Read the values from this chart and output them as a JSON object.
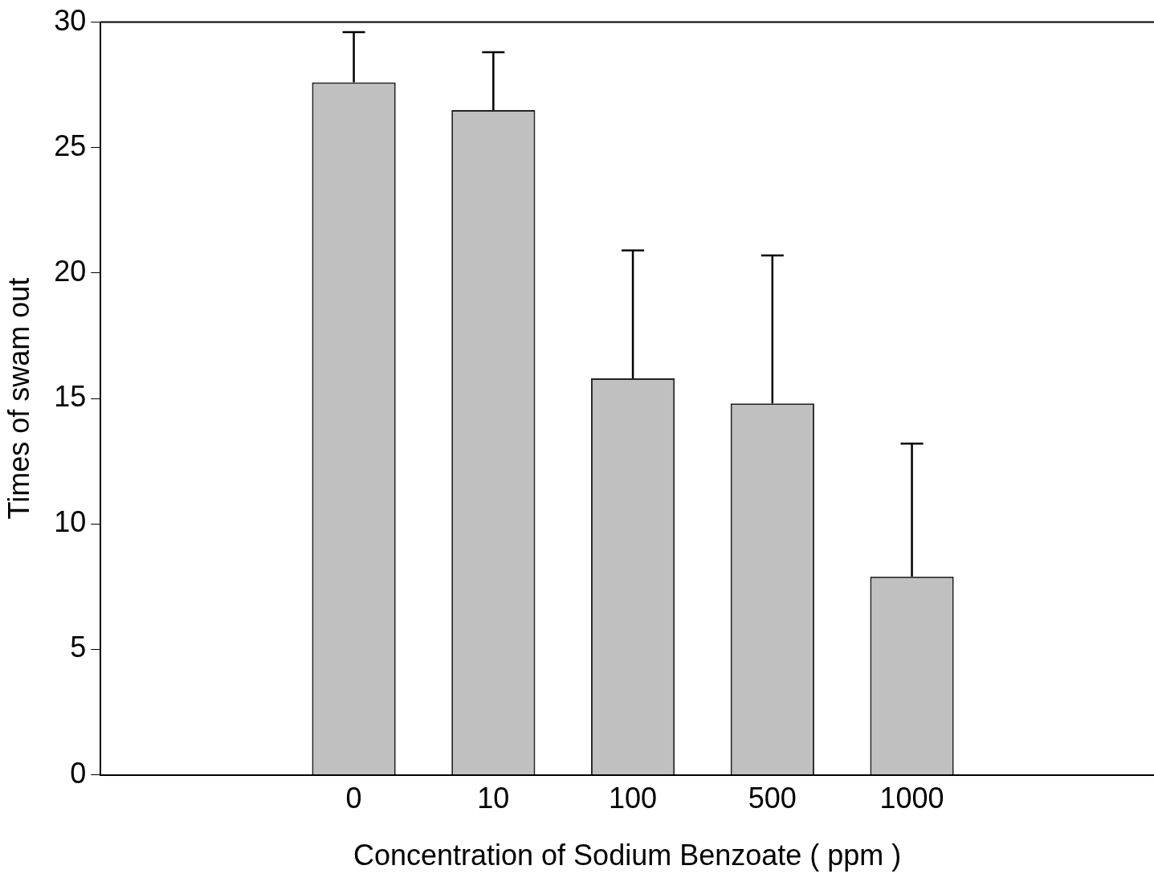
{
  "chart_data": {
    "type": "bar",
    "xlabel": "Concentration of Sodium Benzoate ( ppm )",
    "ylabel": "Times of swam out",
    "categories": [
      "0",
      "10",
      "100",
      "500",
      "1000"
    ],
    "values": [
      27.6,
      26.5,
      15.8,
      14.8,
      7.9
    ],
    "errors": [
      [
        27.6,
        29.6
      ],
      [
        26.5,
        28.8
      ],
      [
        15.8,
        20.9
      ],
      [
        14.8,
        20.7
      ],
      [
        7.9,
        13.2
      ]
    ],
    "color": "#c0c0c0",
    "ylim": [
      0,
      30
    ],
    "yticks": [
      0,
      5,
      10,
      15,
      20,
      25,
      30
    ],
    "grid": false,
    "legend": false
  }
}
